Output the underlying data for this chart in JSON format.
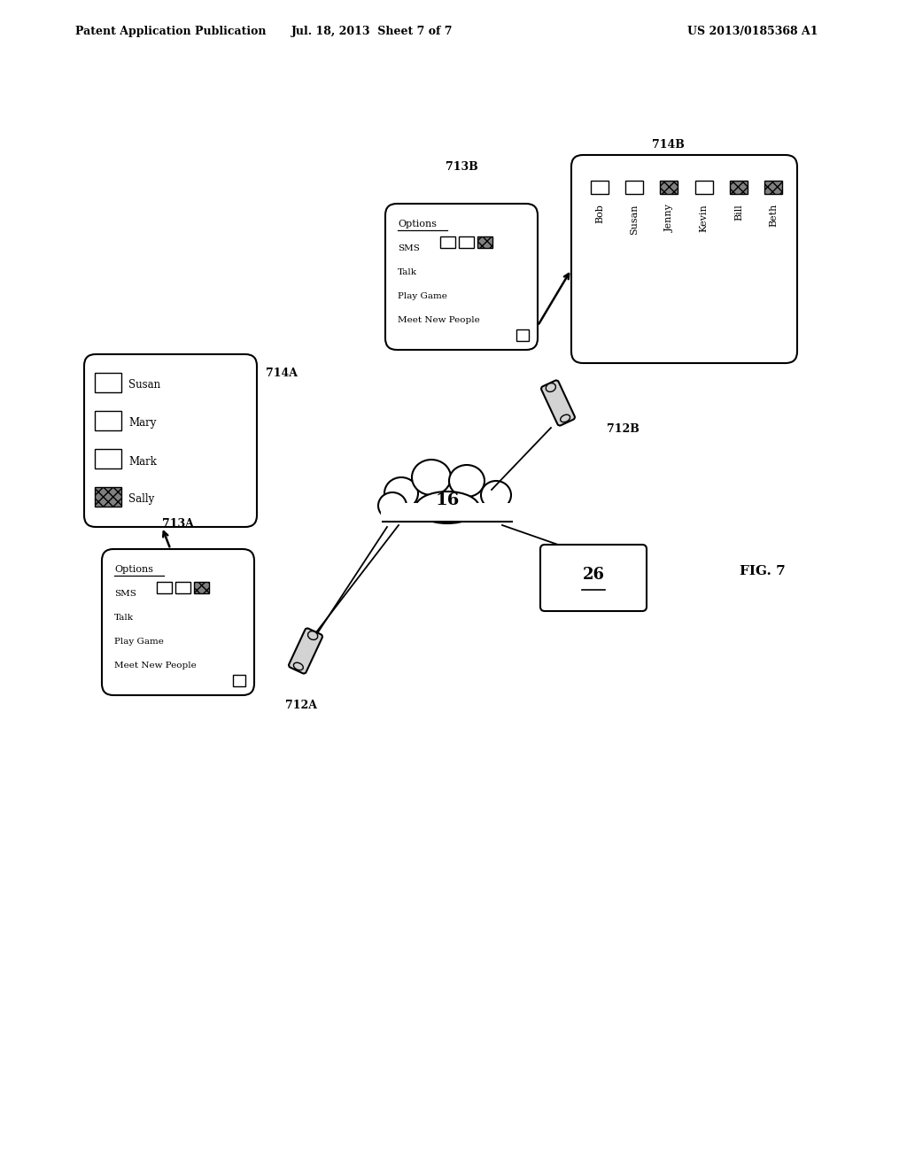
{
  "bg_color": "#ffffff",
  "header_left": "Patent Application Publication",
  "header_mid": "Jul. 18, 2013  Sheet 7 of 7",
  "header_right": "US 2013/0185368 A1",
  "fig_label": "FIG. 7",
  "cloud_label": "16",
  "server_label": "26",
  "phone_a_label": "712A",
  "phone_b_label": "712B",
  "menu_a_label": "713A",
  "menu_b_label": "713B",
  "list_a_label": "714A",
  "list_b_label": "714B",
  "menu_items": [
    "SMS",
    "Talk",
    "Play Game",
    "Meet New People"
  ],
  "list_a_items": [
    "Susan",
    "Mary",
    "Mark",
    "Sally"
  ],
  "list_b_items": [
    "Bob",
    "Susan",
    "Jenny",
    "Kevin",
    "Bill",
    "Beth"
  ]
}
